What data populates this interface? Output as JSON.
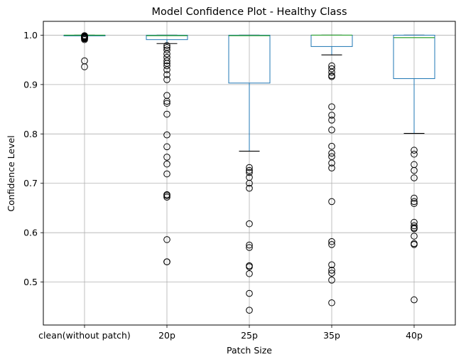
{
  "chart_data": {
    "type": "box",
    "title": "Model Confidence Plot - Healthy Class",
    "xlabel": "Patch Size",
    "ylabel": "Confidence Level",
    "ylim": [
      0.413,
      1.028
    ],
    "yticks": [
      0.5,
      0.6,
      0.7,
      0.8,
      0.9,
      1.0
    ],
    "ytick_labels": [
      "0.5",
      "0.6",
      "0.7",
      "0.8",
      "0.9",
      "1.0"
    ],
    "grid": true,
    "colors": {
      "box": "#1f77b4",
      "median": "#2ca02c",
      "cap": "#000000",
      "grid": "#b0b0b0"
    },
    "categories": [
      "clean(without patch)",
      "20p",
      "25p",
      "35p",
      "40p"
    ],
    "boxes": [
      {
        "label": "clean(without patch)",
        "whisker_low": 0.9995,
        "q1": 0.9998,
        "median": 0.9999,
        "q3": 1.0,
        "whisker_high": 1.0,
        "fliers": [
          0.936,
          0.948,
          0.991,
          0.993,
          0.994,
          0.995,
          0.996,
          0.997,
          0.998,
          0.999
        ]
      },
      {
        "label": "20p",
        "whisker_low": 0.983,
        "q1": 0.991,
        "median": 0.999,
        "q3": 1.0,
        "whisker_high": 1.0,
        "fliers": [
          0.979,
          0.975,
          0.97,
          0.962,
          0.955,
          0.948,
          0.943,
          0.938,
          0.93,
          0.92,
          0.91,
          0.878,
          0.866,
          0.862,
          0.84,
          0.798,
          0.774,
          0.753,
          0.739,
          0.719,
          0.677,
          0.675,
          0.672,
          0.586,
          0.541,
          0.541
        ]
      },
      {
        "label": "25p",
        "whisker_low": 0.765,
        "q1": 0.903,
        "median": 0.999,
        "q3": 1.0,
        "whisker_high": 1.0,
        "fliers": [
          0.732,
          0.726,
          0.722,
          0.712,
          0.7,
          0.69,
          0.618,
          0.575,
          0.57,
          0.533,
          0.531,
          0.517,
          0.477,
          0.443
        ]
      },
      {
        "label": "35p",
        "whisker_low": 0.96,
        "q1": 0.977,
        "median": 1.0,
        "q3": 1.0,
        "whisker_high": 1.0,
        "fliers": [
          0.938,
          0.932,
          0.925,
          0.918,
          0.916,
          0.855,
          0.838,
          0.828,
          0.808,
          0.775,
          0.761,
          0.754,
          0.741,
          0.731,
          0.663,
          0.582,
          0.576,
          0.535,
          0.524,
          0.518,
          0.504,
          0.458
        ]
      },
      {
        "label": "40p",
        "whisker_low": 0.801,
        "q1": 0.912,
        "median": 0.995,
        "q3": 1.0,
        "whisker_high": 1.0,
        "fliers": [
          0.767,
          0.759,
          0.738,
          0.726,
          0.711,
          0.67,
          0.663,
          0.659,
          0.621,
          0.614,
          0.61,
          0.608,
          0.593,
          0.578,
          0.576,
          0.464
        ]
      }
    ]
  }
}
